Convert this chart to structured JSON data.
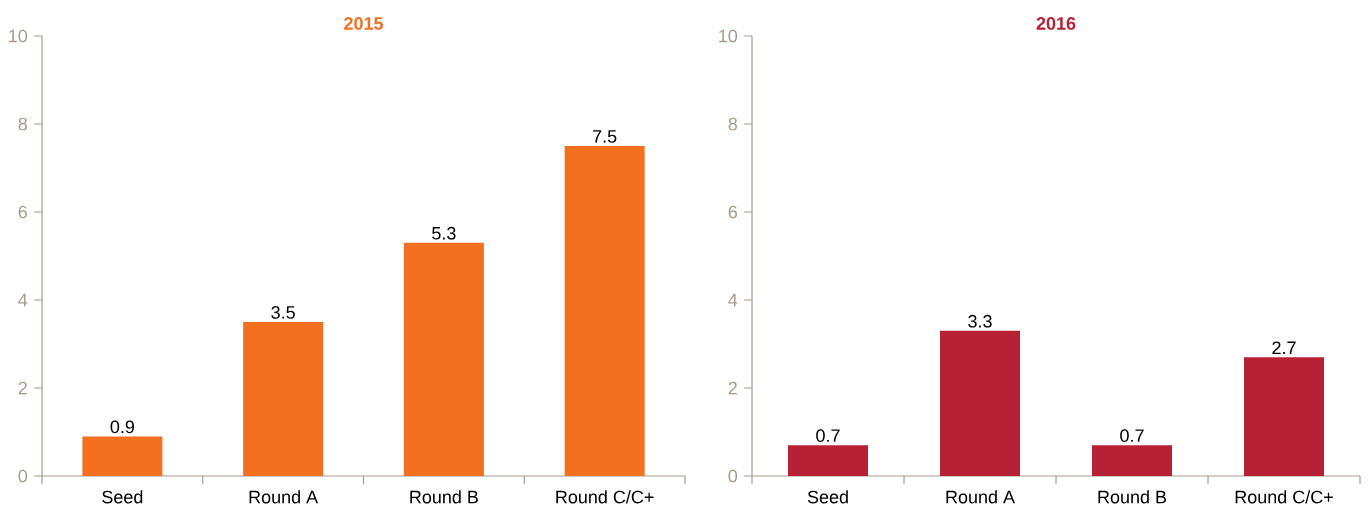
{
  "chart_data": [
    {
      "type": "bar",
      "title": "2015",
      "categories": [
        "Seed",
        "Round A",
        "Round B",
        "Round C/C+"
      ],
      "values": [
        0.9,
        3.5,
        5.3,
        7.5
      ],
      "color": "#f37021",
      "ylim": [
        0,
        10
      ],
      "yticks": [
        0,
        2,
        4,
        6,
        8,
        10
      ],
      "data_labels": true,
      "grid": false
    },
    {
      "type": "bar",
      "title": "2016",
      "categories": [
        "Seed",
        "Round A",
        "Round B",
        "Round C/C+"
      ],
      "values": [
        0.7,
        3.3,
        0.7,
        2.7
      ],
      "color": "#b82035",
      "ylim": [
        0,
        10
      ],
      "yticks": [
        0,
        2,
        4,
        6,
        8,
        10
      ],
      "data_labels": true,
      "grid": false
    }
  ]
}
